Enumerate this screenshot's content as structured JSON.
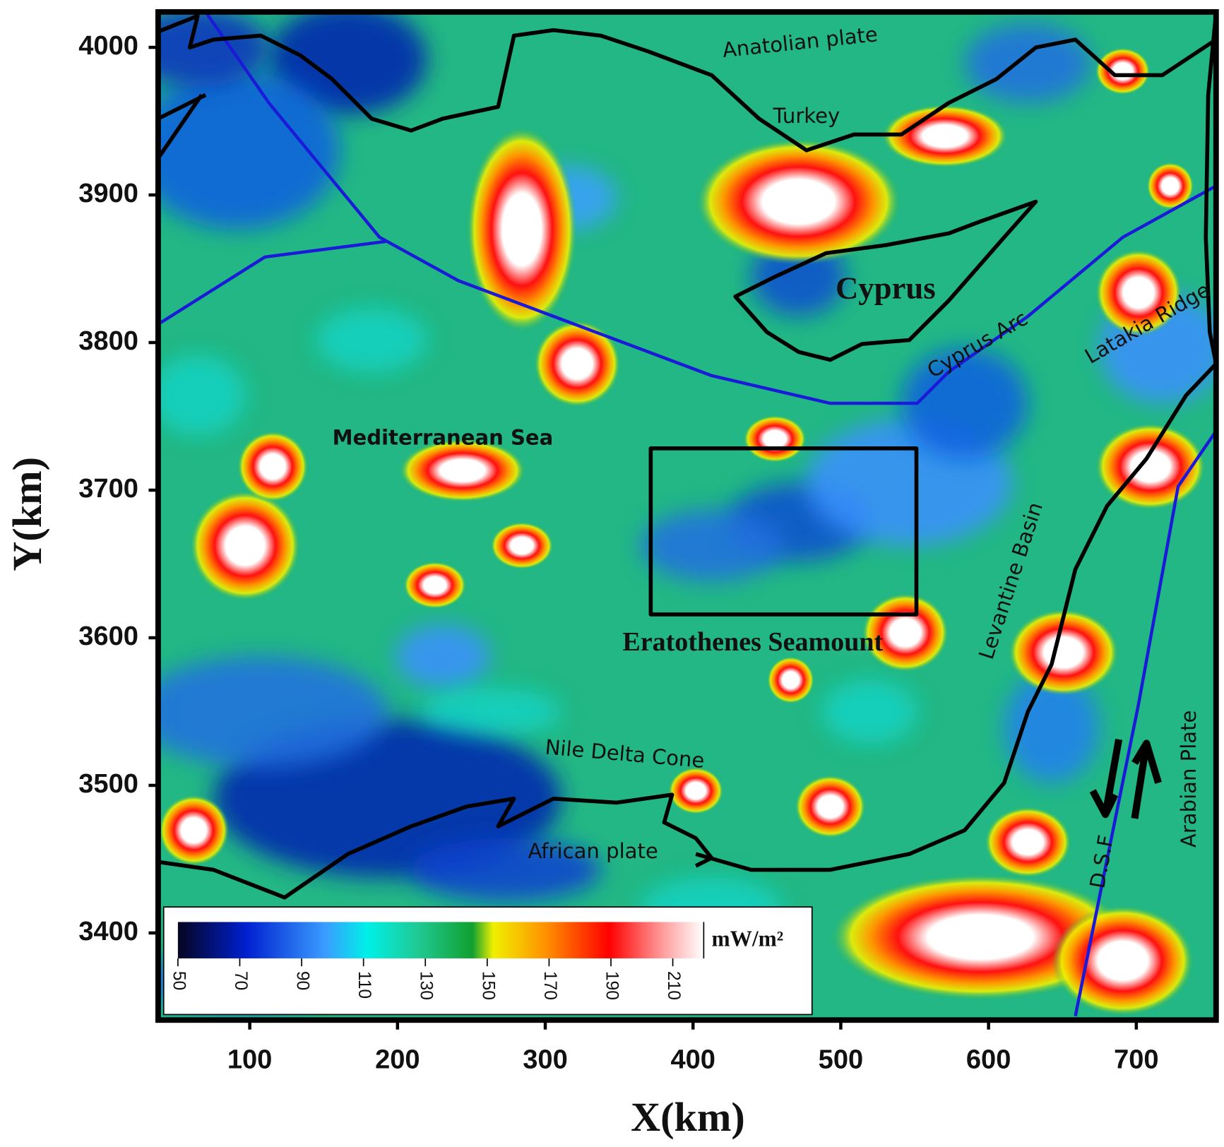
{
  "chart_data": {
    "type": "heatmap",
    "x_label": "X(km)",
    "y_label": "Y(km)",
    "xlim": [
      38,
      754
    ],
    "ylim": [
      3341,
      4024
    ],
    "xticks": [
      100,
      200,
      300,
      400,
      500,
      600,
      700
    ],
    "yticks": [
      3400,
      3500,
      3600,
      3700,
      3800,
      3900,
      4000
    ],
    "colorbar": {
      "label": "mW/m²",
      "lim": [
        50,
        220
      ],
      "ticks": [
        50,
        70,
        90,
        110,
        130,
        150,
        170,
        190,
        210
      ]
    },
    "annotations": [
      "Anatolian plate",
      "Turkey",
      "Cyprus",
      "Cyprus Arc",
      "Latakia Ridge",
      "Mediterranean Sea",
      "Eratothenes Seamount",
      "Levantine Basin",
      "Nile Delta Cone",
      "African plate",
      "D.S.F",
      "Arabian Plate"
    ]
  }
}
